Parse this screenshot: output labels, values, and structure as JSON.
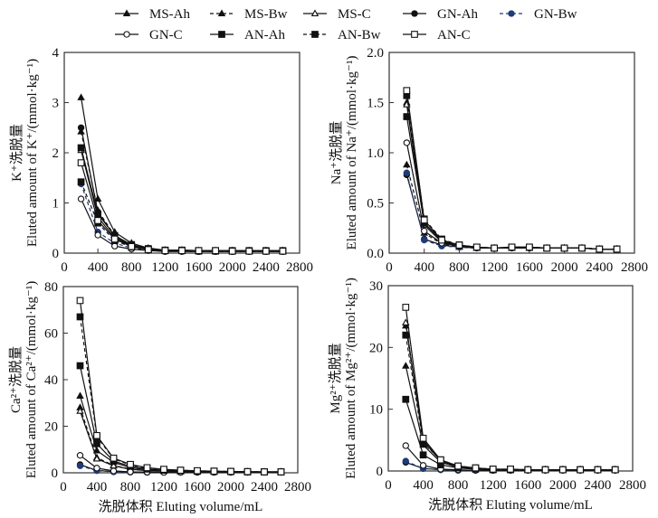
{
  "legend": [
    {
      "name": "MS-Ah",
      "marker": "triangle",
      "fill": "filled",
      "dash": false,
      "color": "#111111"
    },
    {
      "name": "MS-Bw",
      "marker": "triangle",
      "fill": "filled",
      "dash": true,
      "color": "#111111"
    },
    {
      "name": "MS-C",
      "marker": "triangle",
      "fill": "open",
      "dash": false,
      "color": "#111111"
    },
    {
      "name": "GN-Ah",
      "marker": "circle",
      "fill": "filled",
      "dash": false,
      "color": "#111111"
    },
    {
      "name": "GN-Bw",
      "marker": "circle",
      "fill": "filled",
      "dash": true,
      "color": "#1f3a78"
    },
    {
      "name": "GN-C",
      "marker": "circle",
      "fill": "open",
      "dash": false,
      "color": "#111111"
    },
    {
      "name": "AN-Ah",
      "marker": "square",
      "fill": "filled",
      "dash": false,
      "color": "#111111"
    },
    {
      "name": "AN-Bw",
      "marker": "square",
      "fill": "filled",
      "dash": true,
      "color": "#111111"
    },
    {
      "name": "AN-C",
      "marker": "square",
      "fill": "open",
      "dash": false,
      "color": "#111111"
    }
  ],
  "chart_data": [
    {
      "type": "line",
      "id": "k",
      "ylabel_cn": "K⁺洗脱量",
      "ylabel_en": "Eluted amount of K⁺/(mmol·kg⁻¹)",
      "xlabel": "",
      "xlim": [
        0,
        2800
      ],
      "ylim": [
        0,
        4
      ],
      "xticks": [
        "0",
        "400",
        "800",
        "1200",
        "1600",
        "2000",
        "2400",
        "2800"
      ],
      "xtick_values": [
        0,
        400,
        800,
        1200,
        1600,
        2000,
        2400,
        2800
      ],
      "yticks": [
        "0",
        "1",
        "2",
        "3",
        "4"
      ],
      "ytick_values": [
        0,
        1,
        2,
        3,
        4
      ],
      "x": [
        200,
        400,
        600,
        800,
        1000,
        1200,
        1400,
        1600,
        1800,
        2000,
        2200,
        2400,
        2600
      ],
      "series": [
        {
          "name": "MS-Ah",
          "values": [
            3.1,
            1.08,
            0.42,
            0.2,
            0.1,
            0.06,
            0.06,
            0.05,
            0.05,
            0.05,
            0.05,
            0.05,
            0.05
          ]
        },
        {
          "name": "MS-Bw",
          "values": [
            2.42,
            0.85,
            0.35,
            0.16,
            0.08,
            0.05,
            0.05,
            0.04,
            0.04,
            0.04,
            0.04,
            0.04,
            0.04
          ]
        },
        {
          "name": "MS-C",
          "values": [
            2.05,
            0.72,
            0.3,
            0.14,
            0.07,
            0.05,
            0.04,
            0.04,
            0.04,
            0.04,
            0.04,
            0.04,
            0.03
          ]
        },
        {
          "name": "GN-Ah",
          "values": [
            2.5,
            0.82,
            0.33,
            0.15,
            0.08,
            0.05,
            0.05,
            0.04,
            0.04,
            0.04,
            0.04,
            0.04,
            0.04
          ]
        },
        {
          "name": "GN-Bw",
          "values": [
            1.38,
            0.42,
            0.2,
            0.1,
            0.06,
            0.04,
            0.04,
            0.03,
            0.03,
            0.03,
            0.03,
            0.03,
            0.03
          ]
        },
        {
          "name": "GN-C",
          "values": [
            1.08,
            0.36,
            0.14,
            0.08,
            0.05,
            0.03,
            0.03,
            0.03,
            0.03,
            0.03,
            0.03,
            0.03,
            0.03
          ]
        },
        {
          "name": "AN-Ah",
          "values": [
            2.1,
            0.78,
            0.35,
            0.17,
            0.09,
            0.06,
            0.06,
            0.05,
            0.05,
            0.05,
            0.05,
            0.05,
            0.05
          ]
        },
        {
          "name": "AN-Bw",
          "values": [
            1.42,
            0.6,
            0.25,
            0.12,
            0.07,
            0.05,
            0.05,
            0.04,
            0.04,
            0.04,
            0.04,
            0.04,
            0.04
          ]
        },
        {
          "name": "AN-C",
          "values": [
            1.8,
            0.65,
            0.28,
            0.13,
            0.07,
            0.05,
            0.05,
            0.05,
            0.05,
            0.04,
            0.04,
            0.04,
            0.04
          ]
        }
      ]
    },
    {
      "type": "line",
      "id": "na",
      "ylabel_cn": "Na⁺洗脱量",
      "ylabel_en": "Eluted amount of Na⁺/(mmol·kg⁻¹)",
      "xlabel": "",
      "xlim": [
        0,
        2800
      ],
      "ylim": [
        0,
        2.0
      ],
      "xticks": [
        "0",
        "400",
        "800",
        "1200",
        "1600",
        "2000",
        "2400",
        "2800"
      ],
      "xtick_values": [
        0,
        400,
        800,
        1200,
        1600,
        2000,
        2400,
        2800
      ],
      "yticks": [
        "0.0",
        "0.5",
        "1.0",
        "1.5",
        "2.0"
      ],
      "ytick_values": [
        0,
        0.5,
        1.0,
        1.5,
        2.0
      ],
      "x": [
        200,
        400,
        600,
        800,
        1000,
        1200,
        1400,
        1600,
        1800,
        2000,
        2200,
        2400,
        2600
      ],
      "series": [
        {
          "name": "MS-Ah",
          "values": [
            1.5,
            0.3,
            0.12,
            0.07,
            0.05,
            0.05,
            0.05,
            0.05,
            0.05,
            0.05,
            0.05,
            0.04,
            0.04
          ]
        },
        {
          "name": "MS-Bw",
          "values": [
            0.88,
            0.2,
            0.09,
            0.06,
            0.05,
            0.05,
            0.05,
            0.05,
            0.05,
            0.05,
            0.05,
            0.04,
            0.04
          ]
        },
        {
          "name": "MS-C",
          "values": [
            1.48,
            0.28,
            0.11,
            0.07,
            0.05,
            0.05,
            0.05,
            0.05,
            0.05,
            0.05,
            0.05,
            0.04,
            0.04
          ]
        },
        {
          "name": "GN-Ah",
          "values": [
            0.78,
            0.14,
            0.08,
            0.06,
            0.05,
            0.05,
            0.05,
            0.05,
            0.05,
            0.05,
            0.05,
            0.04,
            0.04
          ]
        },
        {
          "name": "GN-Bw",
          "values": [
            0.8,
            0.13,
            0.07,
            0.06,
            0.05,
            0.05,
            0.05,
            0.05,
            0.05,
            0.05,
            0.05,
            0.04,
            0.04
          ]
        },
        {
          "name": "GN-C",
          "values": [
            1.1,
            0.22,
            0.1,
            0.07,
            0.05,
            0.05,
            0.05,
            0.05,
            0.05,
            0.05,
            0.05,
            0.04,
            0.04
          ]
        },
        {
          "name": "AN-Ah",
          "values": [
            1.36,
            0.3,
            0.13,
            0.08,
            0.06,
            0.05,
            0.06,
            0.06,
            0.05,
            0.05,
            0.05,
            0.04,
            0.04
          ]
        },
        {
          "name": "AN-Bw",
          "values": [
            1.57,
            0.34,
            0.14,
            0.08,
            0.06,
            0.05,
            0.06,
            0.06,
            0.05,
            0.05,
            0.05,
            0.04,
            0.04
          ]
        },
        {
          "name": "AN-C",
          "values": [
            1.62,
            0.33,
            0.13,
            0.08,
            0.06,
            0.05,
            0.06,
            0.06,
            0.05,
            0.05,
            0.05,
            0.04,
            0.04
          ]
        }
      ]
    },
    {
      "type": "line",
      "id": "ca",
      "ylabel_cn": "Ca²⁺洗脱量",
      "ylabel_en": "Eluted amount of Ca²⁺/(mmol·kg⁻¹)",
      "xlabel": "洗脱体积 Eluting volume/mL",
      "xlim": [
        0,
        2800
      ],
      "ylim": [
        0,
        80
      ],
      "xticks": [
        "0",
        "400",
        "800",
        "1200",
        "1600",
        "2000",
        "2400",
        "2800"
      ],
      "xtick_values": [
        0,
        400,
        800,
        1200,
        1600,
        2000,
        2400,
        2800
      ],
      "yticks": [
        "0",
        "20",
        "40",
        "60",
        "80"
      ],
      "ytick_values": [
        0,
        20,
        40,
        60,
        80
      ],
      "x": [
        200,
        400,
        600,
        800,
        1000,
        1200,
        1400,
        1600,
        1800,
        2000,
        2200,
        2400,
        2600
      ],
      "series": [
        {
          "name": "MS-Ah",
          "values": [
            33,
            9.5,
            4.5,
            2.2,
            1.3,
            0.9,
            0.7,
            0.6,
            0.5,
            0.5,
            0.4,
            0.4,
            0.4
          ]
        },
        {
          "name": "MS-Bw",
          "values": [
            28,
            6.5,
            3.2,
            1.6,
            1.0,
            0.7,
            0.6,
            0.5,
            0.4,
            0.4,
            0.4,
            0.3,
            0.3
          ]
        },
        {
          "name": "MS-C",
          "values": [
            26.5,
            6.0,
            3.0,
            1.5,
            0.9,
            0.7,
            0.5,
            0.5,
            0.4,
            0.4,
            0.3,
            0.3,
            0.3
          ]
        },
        {
          "name": "GN-Ah",
          "values": [
            3.5,
            1.0,
            0.5,
            0.3,
            0.2,
            0.2,
            0.2,
            0.2,
            0.2,
            0.2,
            0.2,
            0.2,
            0.2
          ]
        },
        {
          "name": "GN-Bw",
          "values": [
            3.0,
            0.9,
            0.4,
            0.3,
            0.2,
            0.2,
            0.2,
            0.2,
            0.2,
            0.2,
            0.2,
            0.2,
            0.2
          ]
        },
        {
          "name": "GN-C",
          "values": [
            7.5,
            2.0,
            0.8,
            0.4,
            0.3,
            0.2,
            0.2,
            0.2,
            0.2,
            0.2,
            0.2,
            0.2,
            0.2
          ]
        },
        {
          "name": "AN-Ah",
          "values": [
            46,
            12.5,
            5.0,
            2.8,
            1.6,
            1.1,
            0.9,
            0.7,
            0.6,
            0.5,
            0.4,
            0.4,
            0.4
          ]
        },
        {
          "name": "AN-Bw",
          "values": [
            67,
            15.5,
            6.0,
            3.4,
            2.0,
            1.4,
            1.1,
            0.8,
            0.7,
            0.6,
            0.5,
            0.4,
            0.4
          ]
        },
        {
          "name": "AN-C",
          "values": [
            74,
            16.0,
            6.3,
            3.6,
            2.2,
            1.5,
            1.1,
            0.9,
            0.7,
            0.6,
            0.5,
            0.4,
            0.4
          ]
        }
      ]
    },
    {
      "type": "line",
      "id": "mg",
      "ylabel_cn": "Mg²⁺洗脱量",
      "ylabel_en": "Eluted amount of Mg²⁺/(mmol·kg⁻¹)",
      "xlabel": "洗脱体积 Eluting volume/mL",
      "xlim": [
        0,
        2800
      ],
      "ylim": [
        0,
        30
      ],
      "xticks": [
        "0",
        "400",
        "800",
        "1200",
        "1600",
        "2000",
        "2400",
        "2800"
      ],
      "xtick_values": [
        0,
        400,
        800,
        1200,
        1600,
        2000,
        2400,
        2800
      ],
      "yticks": [
        "0",
        "10",
        "20",
        "30"
      ],
      "ytick_values": [
        0,
        10,
        20,
        30
      ],
      "x": [
        200,
        400,
        600,
        800,
        1000,
        1200,
        1400,
        1600,
        1800,
        2000,
        2200,
        2400,
        2600
      ],
      "series": [
        {
          "name": "MS-Ah",
          "values": [
            17,
            4.2,
            1.4,
            0.6,
            0.4,
            0.2,
            0.2,
            0.2,
            0.2,
            0.2,
            0.2,
            0.2,
            0.2
          ]
        },
        {
          "name": "MS-Bw",
          "values": [
            23.5,
            4.8,
            1.6,
            0.7,
            0.4,
            0.2,
            0.2,
            0.2,
            0.2,
            0.2,
            0.2,
            0.2,
            0.2
          ]
        },
        {
          "name": "MS-C",
          "values": [
            24,
            5.0,
            1.6,
            0.7,
            0.4,
            0.2,
            0.2,
            0.2,
            0.2,
            0.2,
            0.2,
            0.2,
            0.2
          ]
        },
        {
          "name": "GN-Ah",
          "values": [
            1.4,
            0.4,
            0.2,
            0.1,
            0.1,
            0.1,
            0.1,
            0.1,
            0.1,
            0.1,
            0.1,
            0.1,
            0.1
          ]
        },
        {
          "name": "GN-Bw",
          "values": [
            1.6,
            0.4,
            0.2,
            0.1,
            0.1,
            0.1,
            0.1,
            0.1,
            0.1,
            0.1,
            0.1,
            0.1,
            0.1
          ]
        },
        {
          "name": "GN-C",
          "values": [
            4.1,
            0.9,
            0.3,
            0.2,
            0.1,
            0.1,
            0.1,
            0.1,
            0.1,
            0.1,
            0.1,
            0.1,
            0.1
          ]
        },
        {
          "name": "AN-Ah",
          "values": [
            11.6,
            2.6,
            1.0,
            0.5,
            0.3,
            0.2,
            0.2,
            0.2,
            0.2,
            0.2,
            0.2,
            0.2,
            0.2
          ]
        },
        {
          "name": "AN-Bw",
          "values": [
            22,
            4.5,
            1.8,
            0.8,
            0.5,
            0.3,
            0.3,
            0.2,
            0.2,
            0.2,
            0.2,
            0.2,
            0.2
          ]
        },
        {
          "name": "AN-C",
          "values": [
            26.5,
            5.3,
            1.8,
            0.8,
            0.5,
            0.3,
            0.3,
            0.2,
            0.2,
            0.2,
            0.2,
            0.2,
            0.2
          ]
        }
      ]
    }
  ]
}
